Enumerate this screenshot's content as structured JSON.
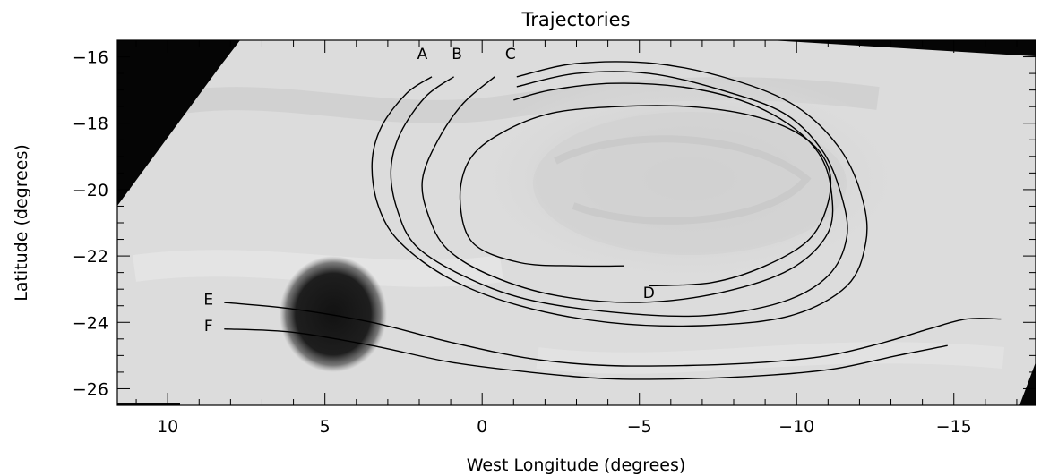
{
  "chart_data": {
    "type": "line",
    "title": "Trajectories",
    "xlabel": "West Longitude (degrees)",
    "ylabel": "Latitude (degrees)",
    "xlim": [
      11.6,
      -17.6
    ],
    "ylim": [
      -26.5,
      -15.5
    ],
    "x_ticks": [
      10,
      5,
      0,
      -5,
      -10,
      -15
    ],
    "x_tick_labels": [
      "10",
      "5",
      "0",
      "−5",
      "−10",
      "−15"
    ],
    "y_ticks": [
      -16,
      -18,
      -20,
      -22,
      -24,
      -26
    ],
    "y_tick_labels": [
      "−16",
      "−18",
      "−20",
      "−22",
      "−24",
      "−26"
    ],
    "grid": false,
    "background": "grayscale cloud image of the Great Red Spot region",
    "series": [
      {
        "name": "A",
        "label_at": [
          1.9,
          -15.9
        ],
        "x": [
          1.6,
          2.4,
          3.2,
          3.5,
          3.3,
          2.6,
          1.0,
          -1.2,
          -4.0,
          -7.0,
          -9.8,
          -11.6,
          -12.2,
          -12.1,
          -11.4,
          -10.0,
          -8.0,
          -5.5,
          -3.0,
          -1.1
        ],
        "y": [
          -16.6,
          -17.1,
          -18.1,
          -19.2,
          -20.5,
          -21.6,
          -22.7,
          -23.5,
          -24.0,
          -24.1,
          -23.8,
          -22.9,
          -21.6,
          -20.3,
          -18.8,
          -17.5,
          -16.7,
          -16.2,
          -16.2,
          -16.6
        ]
      },
      {
        "name": "B",
        "label_at": [
          0.8,
          -15.9
        ],
        "x": [
          0.9,
          1.8,
          2.6,
          2.9,
          2.7,
          2.1,
          0.6,
          -1.4,
          -4.2,
          -7.0,
          -9.5,
          -11.0,
          -11.6,
          -11.4,
          -10.8,
          -9.6,
          -7.6,
          -5.3,
          -3.0,
          -1.1
        ],
        "y": [
          -16.6,
          -17.2,
          -18.3,
          -19.4,
          -20.6,
          -21.7,
          -22.6,
          -23.3,
          -23.7,
          -23.8,
          -23.4,
          -22.6,
          -21.4,
          -20.1,
          -18.8,
          -17.7,
          -17.0,
          -16.5,
          -16.5,
          -16.9
        ]
      },
      {
        "name": "C",
        "label_at": [
          -0.9,
          -15.9
        ],
        "x": [
          -0.4,
          0.6,
          1.4,
          1.9,
          1.7,
          1.1,
          -0.3,
          -2.4,
          -5.0,
          -7.6,
          -9.8,
          -11.0,
          -11.1,
          -10.7,
          -9.7,
          -8.2,
          -6.3,
          -4.1,
          -2.2,
          -1.0
        ],
        "y": [
          -16.6,
          -17.4,
          -18.5,
          -19.7,
          -20.8,
          -21.8,
          -22.6,
          -23.2,
          -23.4,
          -23.1,
          -22.4,
          -21.3,
          -20.0,
          -18.9,
          -18.0,
          -17.3,
          -16.9,
          -16.8,
          -17.0,
          -17.3
        ]
      },
      {
        "name": "D",
        "label_at": [
          -5.3,
          -23.1
        ],
        "x": [
          -4.5,
          -3.0,
          -1.2,
          0.3,
          0.7,
          0.4,
          -0.6,
          -2.2,
          -4.3,
          -6.6,
          -8.7,
          -10.2,
          -11.0,
          -11.0,
          -10.4,
          -9.0,
          -7.3,
          -5.3
        ],
        "y": [
          -22.3,
          -22.3,
          -22.2,
          -21.6,
          -20.3,
          -19.1,
          -18.3,
          -17.7,
          -17.5,
          -17.5,
          -17.8,
          -18.4,
          -19.3,
          -20.4,
          -21.5,
          -22.3,
          -22.8,
          -22.9
        ]
      },
      {
        "name": "E",
        "label_at": [
          8.7,
          -23.3
        ],
        "x": [
          8.2,
          6.0,
          3.5,
          1.0,
          -1.6,
          -4.0,
          -6.5,
          -9.0,
          -11.0,
          -12.8,
          -14.2,
          -15.4,
          -16.5
        ],
        "y": [
          -23.4,
          -23.6,
          -24.0,
          -24.6,
          -25.1,
          -25.3,
          -25.3,
          -25.2,
          -25.0,
          -24.6,
          -24.2,
          -23.9,
          -23.9
        ]
      },
      {
        "name": "F",
        "label_at": [
          8.7,
          -24.1
        ],
        "x": [
          8.2,
          6.0,
          3.5,
          1.0,
          -1.5,
          -4.0,
          -6.5,
          -9.0,
          -11.2,
          -13.2,
          -14.8
        ],
        "y": [
          -24.2,
          -24.3,
          -24.7,
          -25.2,
          -25.5,
          -25.7,
          -25.7,
          -25.6,
          -25.4,
          -25.0,
          -24.7
        ]
      }
    ]
  }
}
